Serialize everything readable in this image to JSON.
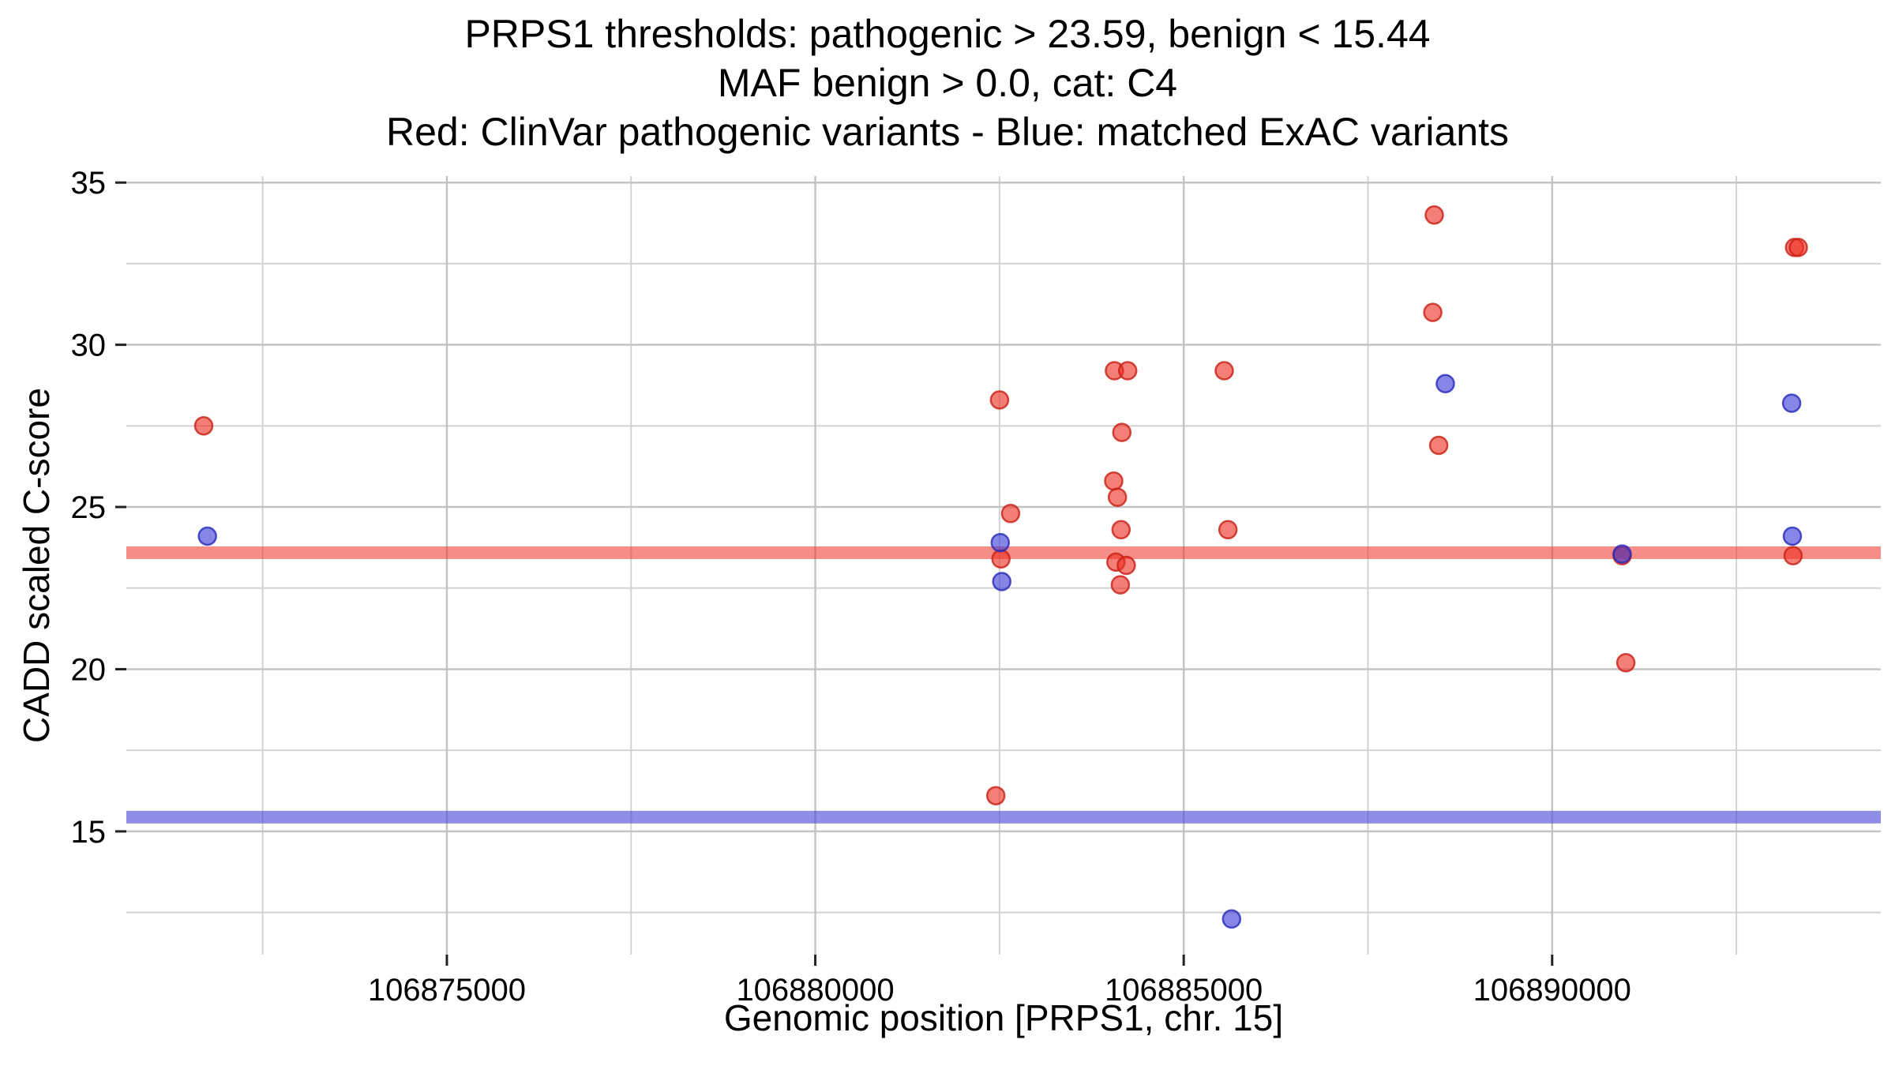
{
  "chart_data": {
    "type": "scatter",
    "title_lines": [
      "PRPS1 thresholds: pathogenic > 23.59, benign < 15.44",
      "MAF benign > 0.0, cat: C4",
      "Red: ClinVar pathogenic variants - Blue: matched ExAC variants"
    ],
    "xlabel": "Genomic position [PRPS1, chr. 15]",
    "ylabel": "CADD scaled C-score",
    "xlim": [
      106870650,
      106894460
    ],
    "ylim": [
      11.2,
      35.2
    ],
    "x_ticks": [
      106875000,
      106880000,
      106885000,
      106890000
    ],
    "x_minor_ticks": [
      106872500,
      106877500,
      106882500,
      106887500,
      106892500
    ],
    "y_ticks": [
      15,
      20,
      25,
      30,
      35
    ],
    "y_minor_ticks": [
      12.5,
      17.5,
      22.5,
      27.5,
      32.5
    ],
    "grid": true,
    "legend": "none",
    "colors": {
      "grid_major": "#c4c4c4",
      "grid_minor": "#d2d2d2",
      "axis_text": "#000000",
      "tick": "#222222"
    },
    "thresholds": [
      {
        "name": "pathogenic",
        "value": 23.59,
        "color": "#ee3124",
        "opacity": 0.55
      },
      {
        "name": "benign",
        "value": 15.44,
        "color": "#4848d8",
        "opacity": 0.62
      }
    ],
    "series": [
      {
        "id": "clinvar-pathogenic",
        "name": "ClinVar pathogenic variants",
        "fill": "#ee3124",
        "stroke": "#c81e14",
        "points": [
          [
            106871700,
            27.5
          ],
          [
            106882500,
            28.3
          ],
          [
            106882650,
            24.8
          ],
          [
            106882520,
            23.4
          ],
          [
            106882450,
            16.1
          ],
          [
            106884060,
            29.2
          ],
          [
            106884240,
            29.2
          ],
          [
            106884160,
            27.3
          ],
          [
            106884050,
            25.8
          ],
          [
            106884100,
            25.3
          ],
          [
            106884150,
            24.3
          ],
          [
            106884080,
            23.3
          ],
          [
            106884220,
            23.2
          ],
          [
            106884140,
            22.6
          ],
          [
            106885550,
            29.2
          ],
          [
            106885600,
            24.3
          ],
          [
            106888400,
            34.0
          ],
          [
            106888380,
            31.0
          ],
          [
            106888460,
            26.9
          ],
          [
            106890950,
            23.5
          ],
          [
            106891000,
            20.2
          ],
          [
            106893290,
            33.0
          ],
          [
            106893340,
            33.0
          ],
          [
            106893270,
            23.5
          ]
        ]
      },
      {
        "id": "exac-matched",
        "name": "matched ExAC variants",
        "fill": "#3b3bd6",
        "stroke": "#2828b8",
        "points": [
          [
            106871750,
            24.1
          ],
          [
            106882510,
            23.9
          ],
          [
            106882530,
            22.7
          ],
          [
            106885650,
            12.3
          ],
          [
            106888550,
            28.8
          ],
          [
            106890950,
            23.55
          ],
          [
            106893250,
            28.2
          ],
          [
            106893260,
            24.1
          ]
        ]
      }
    ]
  }
}
